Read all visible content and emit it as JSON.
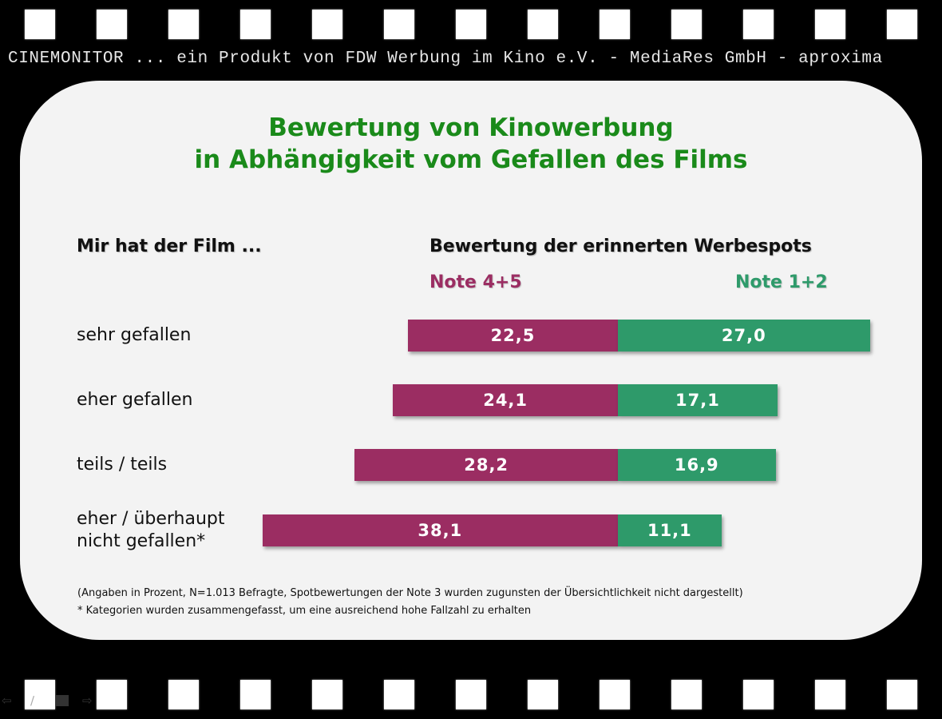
{
  "brand_line": "CINEMONITOR ... ein Produkt von FDW Werbung im Kino e.V. - MediaRes GmbH - aproxima",
  "title_lines": [
    "Bewertung von Kinowerbung",
    "in Abhängigkeit vom Gefallen des Films"
  ],
  "left_header": "Mir hat der Film ...",
  "right_header": "Bewertung der erinnerten Werbespots",
  "colors": {
    "negative": "#9b2d62",
    "positive": "#2e9a6a",
    "title": "#1a8a1a",
    "panel": "#f3f3f3"
  },
  "footnotes": [
    "(Angaben in Prozent, N=1.013 Befragte, Spotbewertungen der Note 3 wurden zugunsten der Übersichtlichkeit nicht dargestellt)",
    "* Kategorien wurden zusammengefasst, um eine ausreichend hohe Fallzahl zu erhalten"
  ],
  "chart_data": {
    "type": "bar",
    "orientation": "horizontal-diverging",
    "title": "Bewertung von Kinowerbung in Abhängigkeit vom Gefallen des Films",
    "xlabel": "Bewertung der erinnerten Werbespots",
    "ylabel": "Mir hat der Film ...",
    "categories": [
      "sehr gefallen",
      "eher gefallen",
      "teils / teils",
      "eher / überhaupt nicht gefallen*"
    ],
    "category_lines": [
      [
        "sehr gefallen"
      ],
      [
        "eher gefallen"
      ],
      [
        "teils / teils"
      ],
      [
        "eher / überhaupt",
        "nicht gefallen*"
      ]
    ],
    "series": [
      {
        "name": "Note 4+5",
        "values": [
          22.5,
          24.1,
          28.2,
          38.1
        ],
        "labels": [
          "22,5",
          "24,1",
          "28,2",
          "38,1"
        ],
        "color": "#9b2d62",
        "side": "left"
      },
      {
        "name": "Note 1+2",
        "values": [
          27.0,
          17.1,
          16.9,
          11.1
        ],
        "labels": [
          "27,0",
          "17,1",
          "16,9",
          "11,1"
        ],
        "color": "#2e9a6a",
        "side": "right"
      }
    ],
    "units": "Prozent",
    "grid": false,
    "legend_position": "top"
  }
}
